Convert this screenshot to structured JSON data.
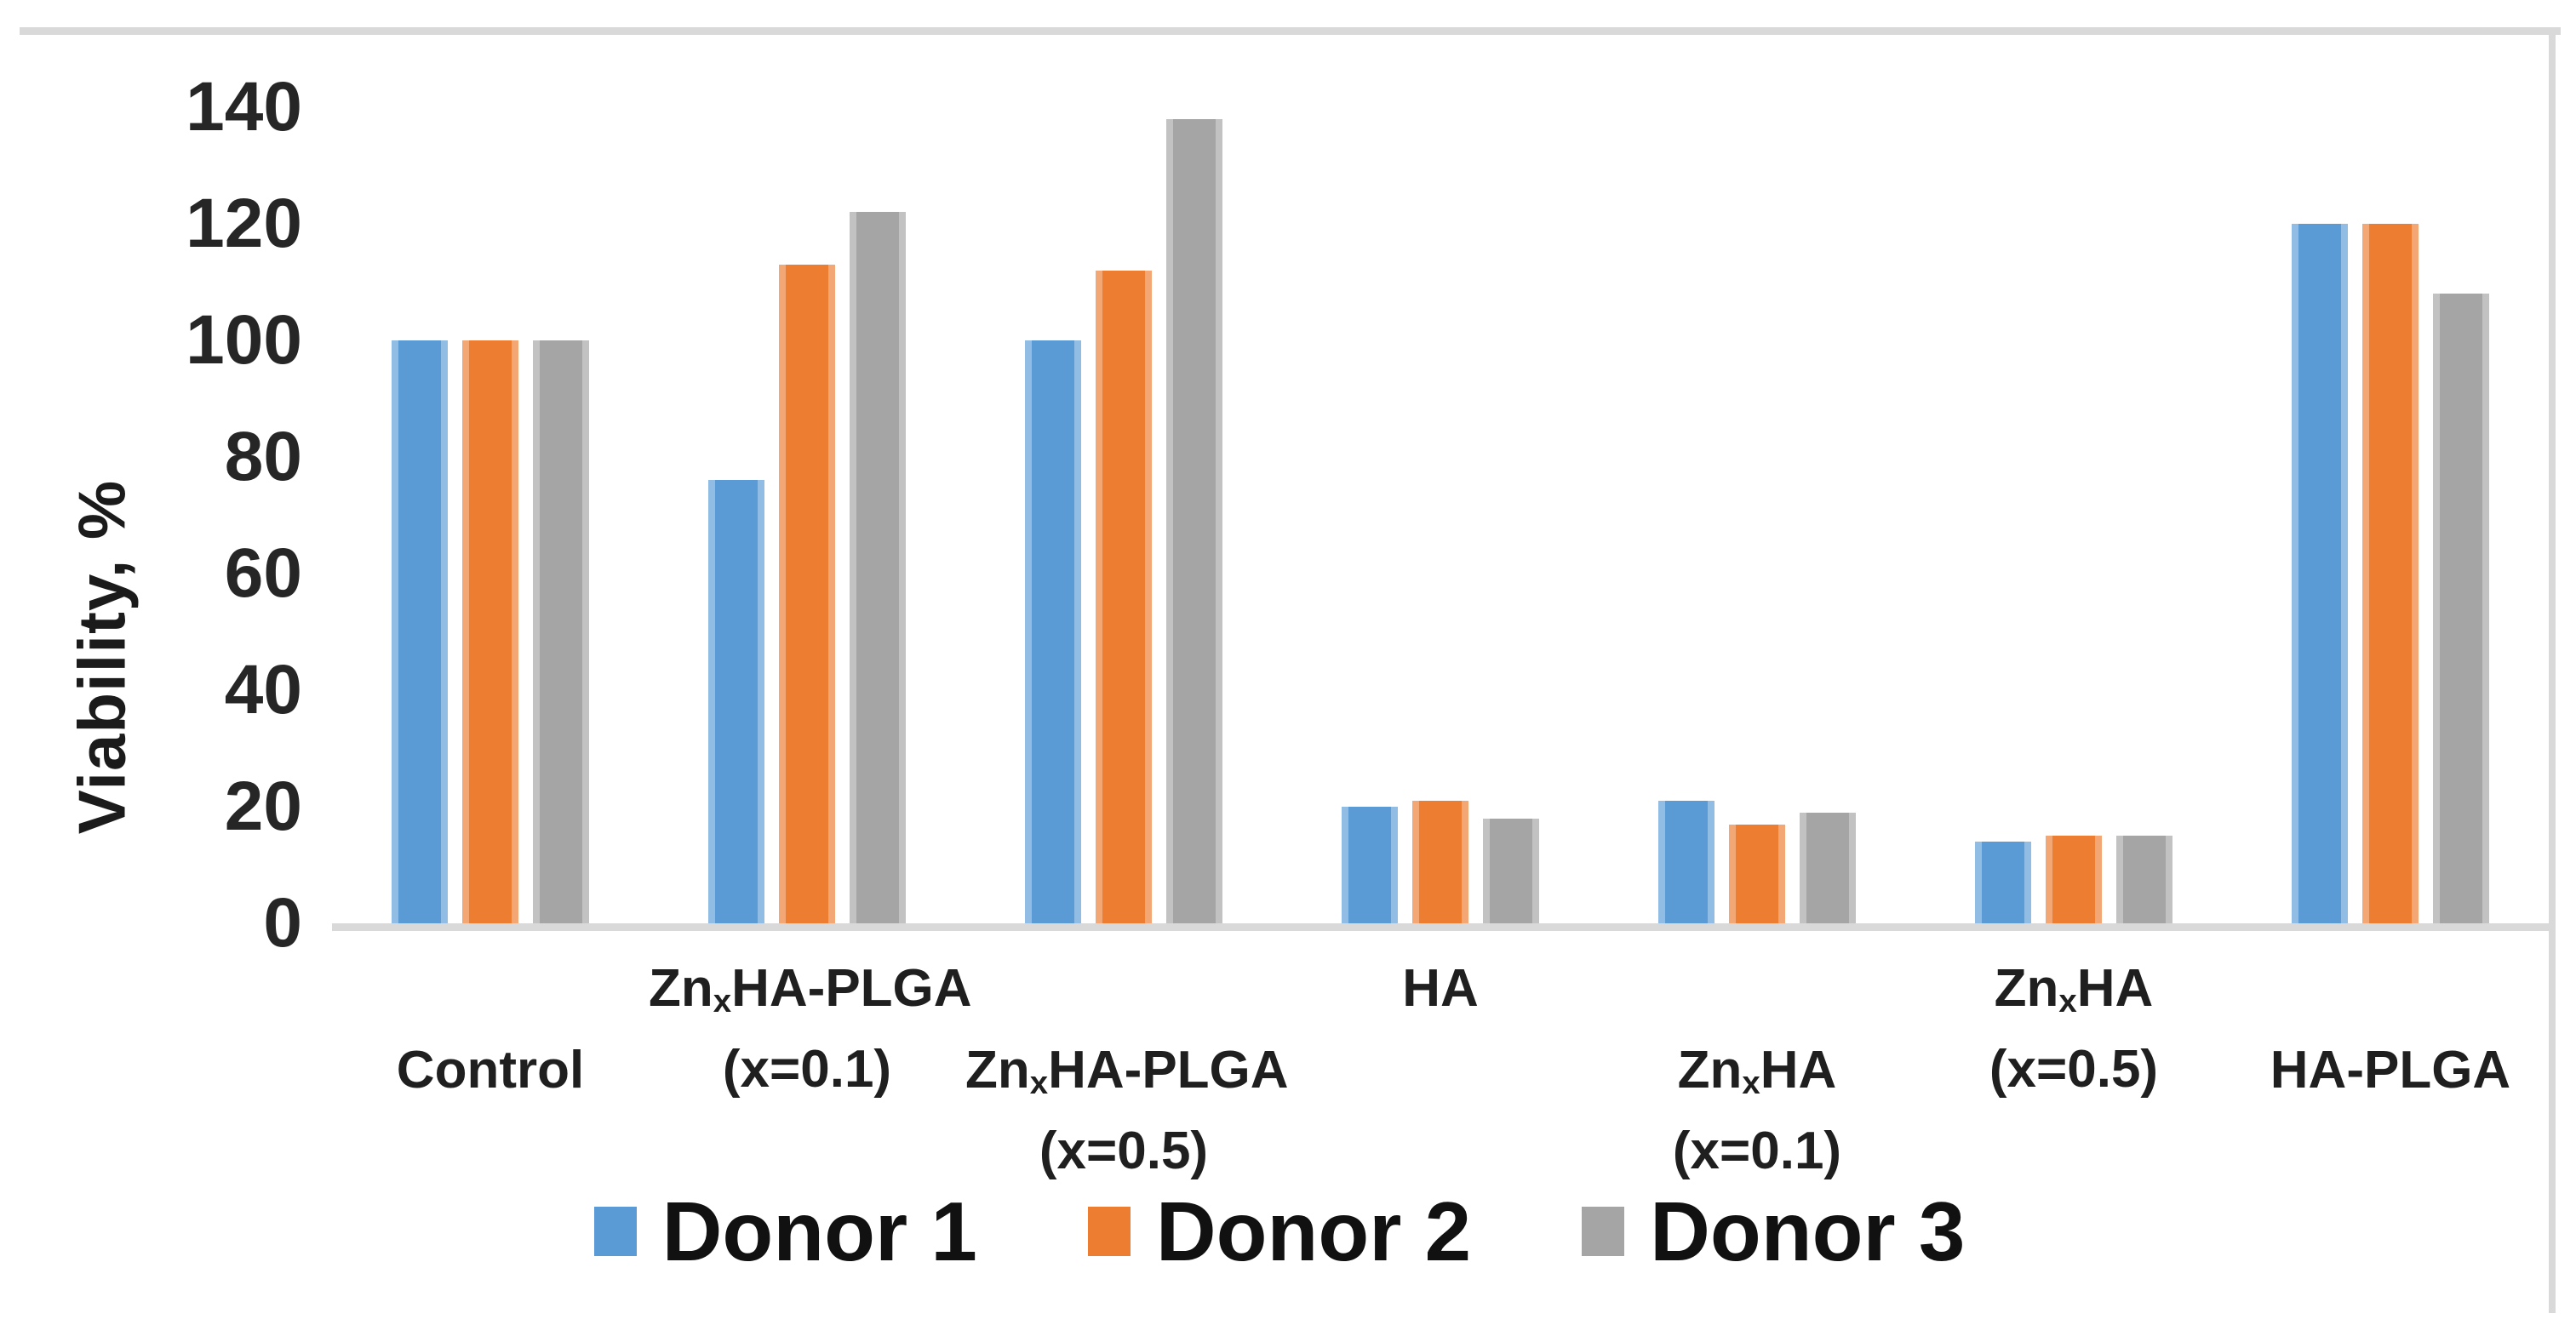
{
  "figure": {
    "y_axis_title": "Viability, %",
    "y_ticks": [
      "140",
      "120",
      "100",
      "80",
      "60",
      "40",
      "20",
      "0"
    ],
    "categories_display": [
      {
        "pre": "Control"
      },
      {
        "pre": "Zn",
        "sub": "x",
        "post": "HA-PLGA",
        "line2": "(x=0.1)"
      },
      {
        "pre": "Zn",
        "sub": "x",
        "post": "HA-PLGA",
        "line2": "(x=0.5)"
      },
      {
        "pre": "HA"
      },
      {
        "pre": "Zn",
        "sub": "x",
        "post": "HA",
        "line2": "(x=0.1)"
      },
      {
        "pre": "Zn",
        "sub": "x",
        "post": "HA",
        "line2": "(x=0.5)"
      },
      {
        "pre": "HA-PLGA"
      }
    ]
  },
  "chart_data": {
    "type": "bar",
    "title": "",
    "xlabel": "",
    "ylabel": "Viability, %",
    "ylim": [
      0,
      140
    ],
    "ytick_step": 20,
    "grid": false,
    "legend_position": "bottom",
    "categories": [
      "Control",
      "ZnxHA-PLGA (x=0.1)",
      "ZnxHA-PLGA (x=0.5)",
      "HA",
      "ZnxHA (x=0.1)",
      "ZnxHA (x=0.5)",
      "HA-PLGA"
    ],
    "series": [
      {
        "name": "Donor 1",
        "color": "#5B9BD5",
        "values": [
          100,
          76,
          100,
          20,
          21,
          14,
          120
        ]
      },
      {
        "name": "Donor 2",
        "color": "#ED7D31",
        "values": [
          100,
          113,
          112,
          21,
          17,
          15,
          120
        ]
      },
      {
        "name": "Donor 3",
        "color": "#A5A5A5",
        "values": [
          100,
          122,
          138,
          18,
          19,
          15,
          108
        ]
      }
    ],
    "colors": {
      "axis_line": "#d9d9d9",
      "text": "#1b1b1b",
      "background": "#ffffff"
    }
  }
}
